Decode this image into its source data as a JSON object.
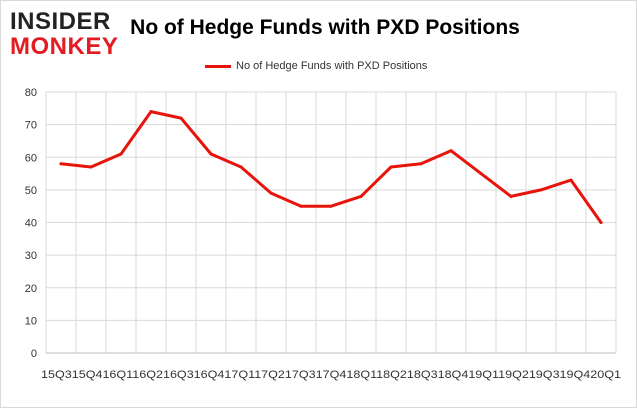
{
  "logo": {
    "line1": "INSIDER",
    "line2": "MONKEY"
  },
  "chart_data": {
    "type": "line",
    "title": "No of Hedge Funds with PXD Positions",
    "xlabel": "",
    "ylabel": "",
    "categories": [
      "Q3",
      "Q4",
      "Q1",
      "Q2",
      "Q3",
      "Q4",
      "Q1",
      "Q2",
      "Q3",
      "Q4",
      "Q1",
      "Q2",
      "Q3",
      "Q4",
      "Q1",
      "Q2",
      "Q3",
      "Q4",
      "Q1"
    ],
    "tick_label_string": "15Q315Q416Q116Q216Q316Q417Q117Q217Q317Q418Q118Q218Q318Q419Q119Q219Q319Q420Q1",
    "series": [
      {
        "name": "No of Hedge Funds with PXD Positions",
        "color": "#e8140b",
        "values": [
          58,
          57,
          61,
          74,
          72,
          61,
          57,
          49,
          45,
          45,
          48,
          57,
          58,
          62,
          55,
          48,
          50,
          53,
          40
        ]
      }
    ],
    "ylim": [
      0,
      80
    ],
    "yticks": [
      0,
      10,
      20,
      30,
      40,
      50,
      60,
      70,
      80
    ],
    "grid": true,
    "legend_position": "top-center"
  }
}
